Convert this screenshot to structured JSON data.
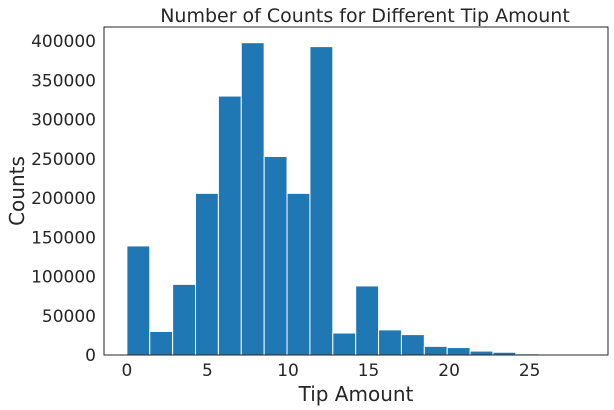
{
  "chart_data": {
    "type": "bar",
    "title": "Number of Counts for Different Tip Amount",
    "xlabel": "Tip Amount",
    "ylabel": "Counts",
    "xlim": [
      -1.42,
      29.86
    ],
    "ylim": [
      0,
      418000
    ],
    "xticks": [
      0,
      5,
      10,
      15,
      20,
      25
    ],
    "xtick_labels": [
      "0",
      "5",
      "10",
      "15",
      "20",
      "25"
    ],
    "yticks": [
      0,
      50000,
      100000,
      150000,
      200000,
      250000,
      300000,
      350000,
      400000
    ],
    "ytick_labels": [
      "0",
      "50000",
      "100000",
      "150000",
      "200000",
      "250000",
      "300000",
      "350000",
      "400000"
    ],
    "bin_width": 1.42,
    "bin_edges": [
      0,
      1.42,
      2.84,
      4.26,
      5.68,
      7.1,
      8.52,
      9.94,
      11.36,
      12.78,
      14.2,
      15.62,
      17.04,
      18.46,
      19.88,
      21.3,
      22.72,
      24.14,
      25.56,
      26.98,
      28.4
    ],
    "values": [
      139000,
      30000,
      90000,
      206000,
      330000,
      398000,
      253000,
      206000,
      393000,
      28000,
      88000,
      32000,
      26000,
      11000,
      9500,
      5000,
      3500,
      1500,
      500,
      300
    ],
    "grid": false,
    "color": "#1f77b4"
  }
}
